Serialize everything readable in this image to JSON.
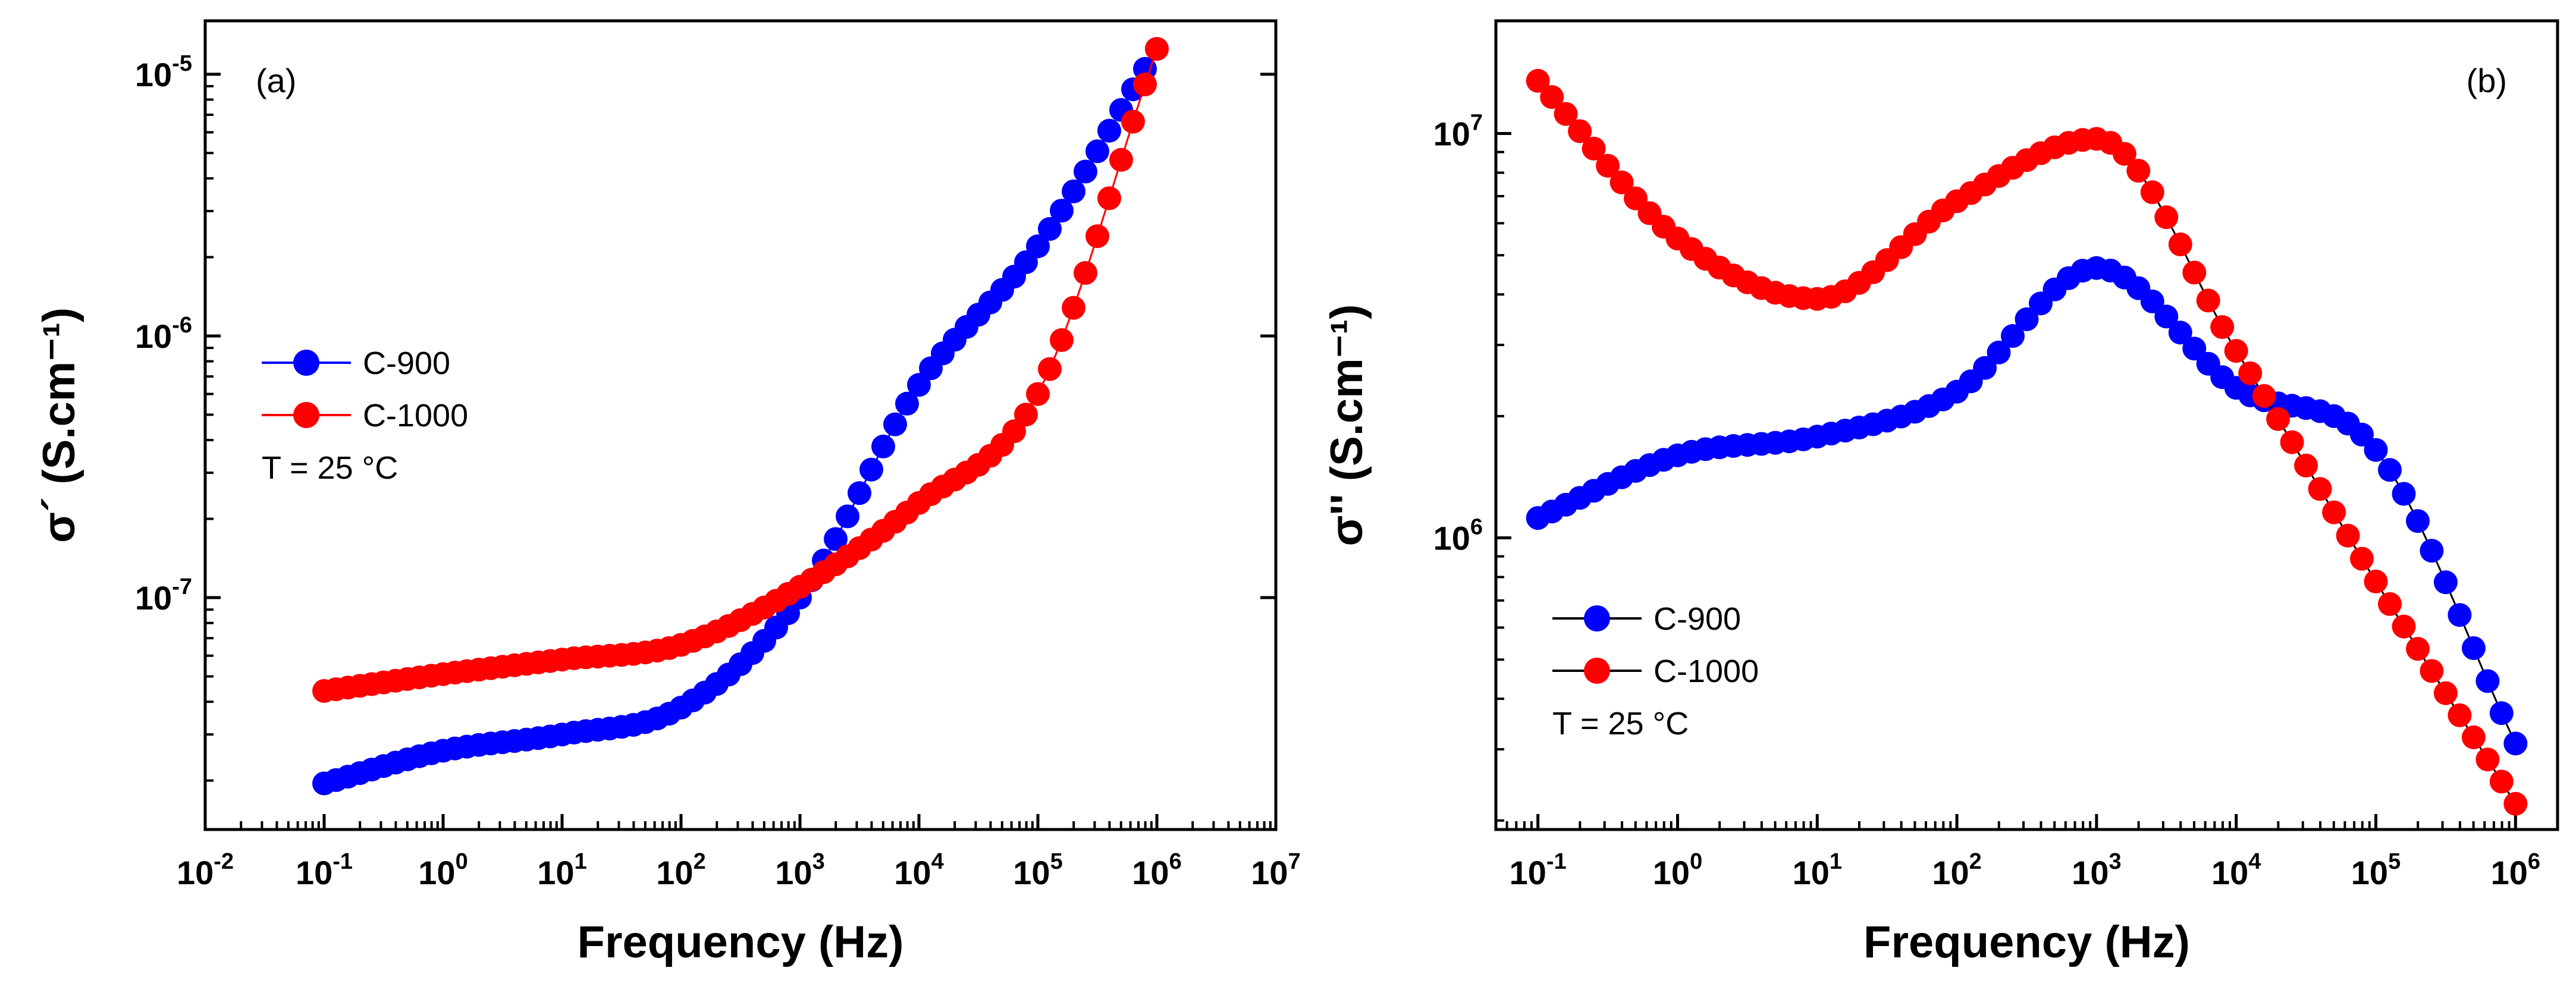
{
  "chart_data": [
    {
      "type": "scatter",
      "panel_label": "(a)",
      "xlabel": "Frequency (Hz)",
      "ylabel": "σ´ (S.cm⁻¹)",
      "xscale": "log",
      "yscale": "log",
      "xlim": [
        0.01,
        10000000
      ],
      "ylim": [
        1.3e-08,
        1.6e-05
      ],
      "x_ticks": [
        {
          "base": "10",
          "exp": "-2",
          "value": 0.01
        },
        {
          "base": "10",
          "exp": "-1",
          "value": 0.1
        },
        {
          "base": "10",
          "exp": "0",
          "value": 1
        },
        {
          "base": "10",
          "exp": "1",
          "value": 10
        },
        {
          "base": "10",
          "exp": "2",
          "value": 100
        },
        {
          "base": "10",
          "exp": "3",
          "value": 1000
        },
        {
          "base": "10",
          "exp": "4",
          "value": 10000
        },
        {
          "base": "10",
          "exp": "5",
          "value": 100000
        },
        {
          "base": "10",
          "exp": "6",
          "value": 1000000
        },
        {
          "base": "10",
          "exp": "7",
          "value": 10000000
        }
      ],
      "y_ticks": [
        {
          "base": "10",
          "exp": "-7",
          "value": 1e-07
        },
        {
          "base": "10",
          "exp": "-6",
          "value": 1e-06
        },
        {
          "base": "10",
          "exp": "-5",
          "value": 1e-05
        }
      ],
      "legend": {
        "position": "center-left",
        "entries": [
          "C-900",
          "C-1000"
        ],
        "note": "T = 25 °C"
      },
      "series": [
        {
          "name": "C-900",
          "color": "#0000ff",
          "x": [
            0.1,
            1,
            10,
            100,
            1000,
            10000,
            100000,
            1000000
          ],
          "y": [
            1.95e-08,
            2.6e-08,
            3e-08,
            3.8e-08,
            1e-07,
            6.5e-07,
            2.2e-06,
            1.25e-05
          ]
        },
        {
          "name": "C-1000",
          "color": "#ff0000",
          "x": [
            0.1,
            1,
            10,
            100,
            1000,
            10000,
            100000,
            1000000
          ],
          "y": [
            4.4e-08,
            5.1e-08,
            5.8e-08,
            6.6e-08,
            1.1e-07,
            2.3e-07,
            6e-07,
            1.25e-05
          ]
        }
      ]
    },
    {
      "type": "scatter",
      "panel_label": "(b)",
      "xlabel": "Frequency (Hz)",
      "ylabel": "σ'' (S.cm⁻¹)",
      "xscale": "log",
      "yscale": "log",
      "xlim": [
        0.05,
        2000000
      ],
      "ylim": [
        190000,
        19000000
      ],
      "x_ticks": [
        {
          "base": "10",
          "exp": "-1",
          "value": 0.1
        },
        {
          "base": "10",
          "exp": "0",
          "value": 1
        },
        {
          "base": "10",
          "exp": "1",
          "value": 10
        },
        {
          "base": "10",
          "exp": "2",
          "value": 100
        },
        {
          "base": "10",
          "exp": "3",
          "value": 1000
        },
        {
          "base": "10",
          "exp": "4",
          "value": 10000
        },
        {
          "base": "10",
          "exp": "5",
          "value": 100000
        },
        {
          "base": "10",
          "exp": "6",
          "value": 1000000
        }
      ],
      "y_ticks": [
        {
          "base": "10",
          "exp": "6",
          "value": 1000000
        },
        {
          "base": "10",
          "exp": "7",
          "value": 10000000
        }
      ],
      "legend": {
        "position": "bottom-left",
        "entries": [
          "C-900",
          "C-1000"
        ],
        "note": "T = 25 °C"
      },
      "series": [
        {
          "name": "C-900",
          "color": "#0000ff",
          "x": [
            0.1,
            1,
            10,
            100,
            1000,
            10000,
            100000,
            1000000
          ],
          "y": [
            1120000,
            1600000,
            1780000,
            2300000,
            4650000,
            2350000,
            1650000,
            310000
          ]
        },
        {
          "name": "C-1000",
          "color": "#ff0000",
          "x": [
            0.1,
            1,
            10,
            100,
            1000,
            10000,
            100000,
            1000000
          ],
          "y": [
            13500000,
            5500000,
            3900000,
            6800000,
            9700000,
            2900000,
            780000,
            220000
          ]
        }
      ]
    }
  ]
}
